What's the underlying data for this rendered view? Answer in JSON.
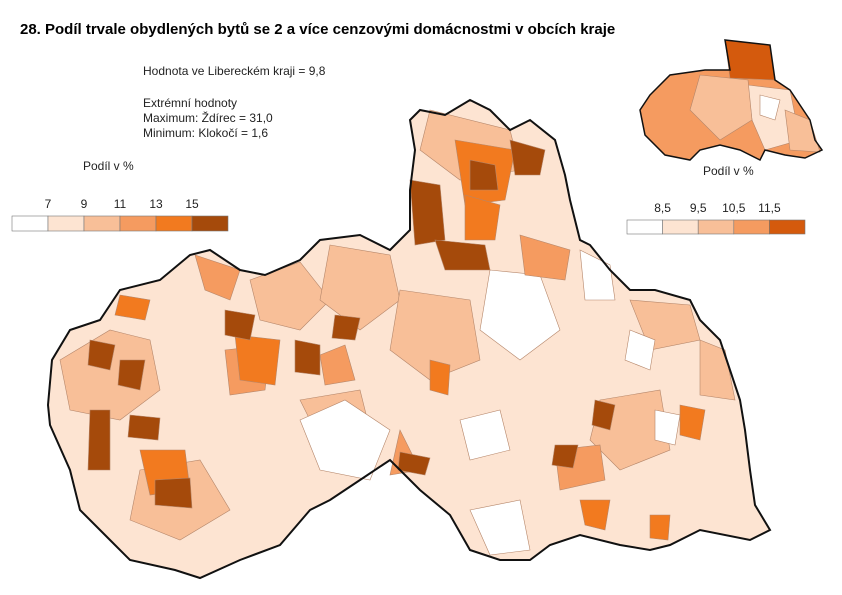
{
  "title": "28. Podíl trvale obydlených bytů se 2 a více cenzovými domácnostmi v obcích kraje",
  "summary": {
    "region_value": "Hodnota ve Libereckém  kraji = 9,8",
    "extremes_heading": "Extrémní hodnoty",
    "maximum": "Maximum: Ždírec = 31,0",
    "minimum": "Minimum: Klokočí = 1,6"
  },
  "legend_municipalities": {
    "title": "Podíl v %",
    "ticks": [
      "7",
      "9",
      "11",
      "13",
      "15"
    ],
    "colors": [
      "#ffffff",
      "#fde4d2",
      "#f8bf98",
      "#f59b60",
      "#f27a1f",
      "#a54a0b"
    ]
  },
  "legend_districts": {
    "title": "Podíl v %",
    "ticks": [
      "8,5",
      "9,5",
      "10,5",
      "11,5"
    ],
    "colors": [
      "#ffffff",
      "#fde4d2",
      "#f8bf98",
      "#f59b60",
      "#d45a0d"
    ]
  }
}
